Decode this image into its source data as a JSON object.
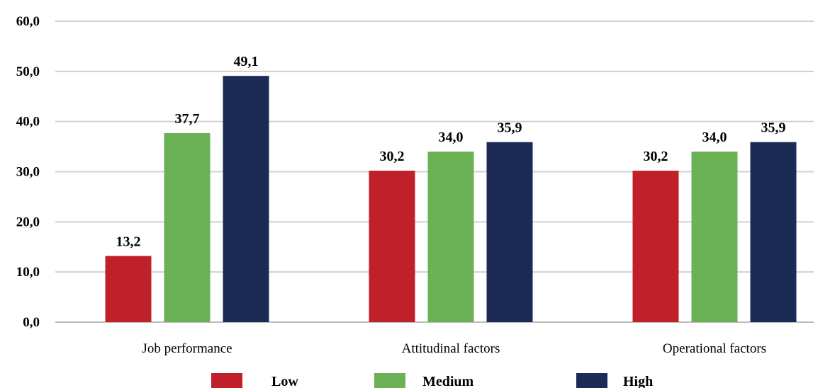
{
  "chart_data": {
    "type": "bar",
    "categories": [
      "Job performance",
      "Attitudinal factors",
      "Operational factors"
    ],
    "series": [
      {
        "name": "Low",
        "color": "#c0202a",
        "values": [
          13.2,
          30.2,
          30.2
        ],
        "labels": [
          "13,2",
          "30,2",
          "30,2"
        ]
      },
      {
        "name": "Medium",
        "color": "#6ab255",
        "values": [
          37.7,
          34.0,
          34.0
        ],
        "labels": [
          "37,7",
          "34,0",
          "34,0"
        ]
      },
      {
        "name": "High",
        "color": "#1c2b55",
        "values": [
          49.1,
          35.9,
          35.9
        ],
        "labels": [
          "49,1",
          "35,9",
          "35,9"
        ]
      }
    ],
    "yticks": [
      "0,0",
      "10,0",
      "20,0",
      "30,0",
      "40,0",
      "50,0",
      "60,0"
    ],
    "ylim": [
      0,
      60
    ],
    "grid": true,
    "legend_position": "bottom"
  }
}
